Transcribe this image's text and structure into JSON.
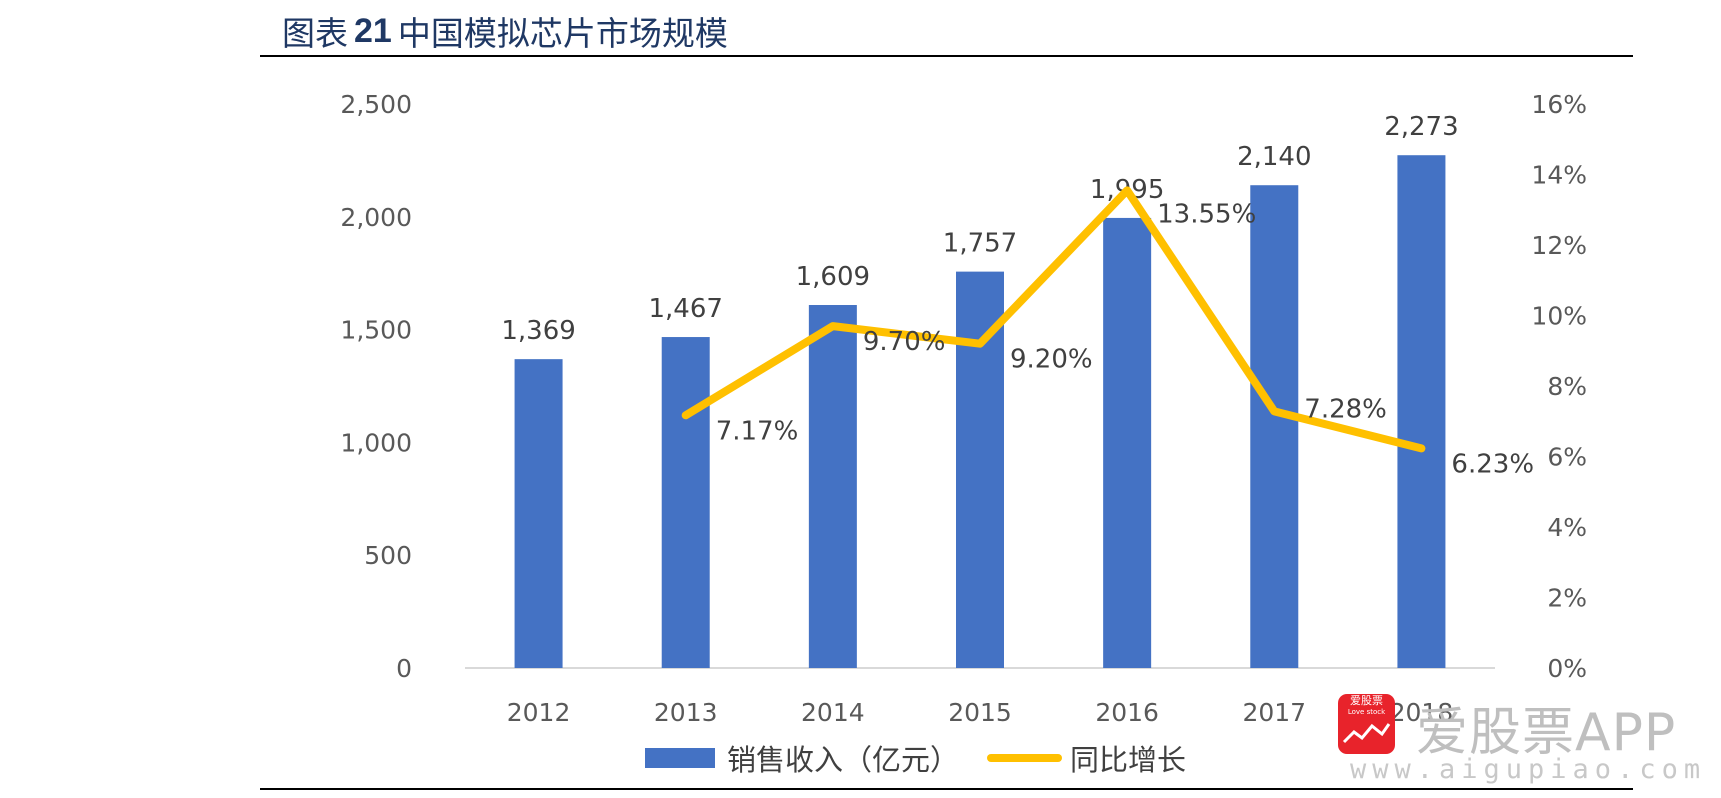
{
  "header": {
    "prefix": "图表",
    "number": "21",
    "title": "中国模拟芯片市场规模"
  },
  "chart_data": {
    "type": "bar",
    "title": "中国模拟芯片市场规模",
    "categories": [
      "2012",
      "2013",
      "2014",
      "2015",
      "2016",
      "2017",
      "2018"
    ],
    "series": [
      {
        "name": "销售收入（亿元）",
        "type": "bar",
        "axis": "left",
        "values": [
          1369,
          1467,
          1609,
          1757,
          1995,
          2140,
          2273
        ],
        "labels": [
          "1,369",
          "1,467",
          "1,609",
          "1,757",
          "1,995",
          "2,140",
          "2,273"
        ]
      },
      {
        "name": "同比增长",
        "type": "line",
        "axis": "right",
        "values": [
          null,
          7.17,
          9.7,
          9.2,
          13.55,
          7.28,
          6.23
        ],
        "labels": [
          "",
          "7.17%",
          "9.70%",
          "9.20%",
          "13.55%",
          "7.28%",
          "6.23%"
        ]
      }
    ],
    "y_left": {
      "range": [
        0,
        2500
      ],
      "ticks": [
        0,
        500,
        1000,
        1500,
        2000,
        2500
      ],
      "tick_labels": [
        "0",
        "500",
        "1,000",
        "1,500",
        "2,000",
        "2,500"
      ]
    },
    "y_right": {
      "range": [
        0,
        16
      ],
      "ticks": [
        0,
        2,
        4,
        6,
        8,
        10,
        12,
        14,
        16
      ],
      "tick_labels": [
        "0%",
        "2%",
        "4%",
        "6%",
        "8%",
        "10%",
        "12%",
        "14%",
        "16%"
      ]
    },
    "grid": false,
    "legend_position": "bottom",
    "colors": {
      "bar": "#4472c4",
      "line": "#ffc000",
      "axis": "#d9d9d9"
    }
  },
  "legend": {
    "bar_label": "销售收入（亿元）",
    "line_label": "同比增长"
  },
  "watermark": {
    "logo_text": "爱股票",
    "logo_subtext": "Love stock",
    "name": "爱股票APP",
    "url": "www.aigupiao.com"
  }
}
